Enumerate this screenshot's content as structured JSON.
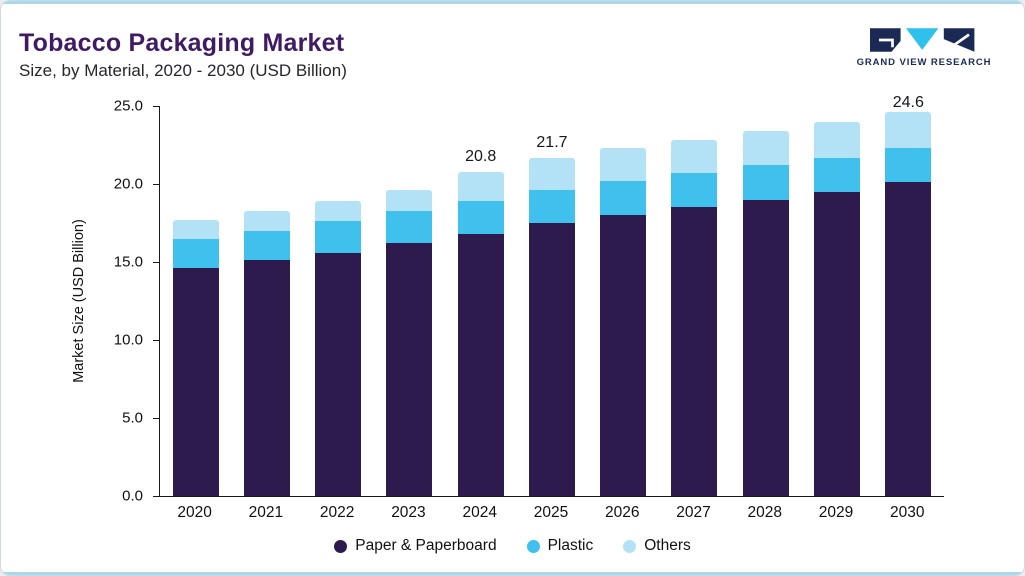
{
  "branding": {
    "logo_text": "GRAND VIEW RESEARCH"
  },
  "chart_data": {
    "type": "bar",
    "stacked": true,
    "title": "Tobacco Packaging Market",
    "subtitle": "Size, by Material, 2020 - 2030 (USD Billion)",
    "ylabel": "Market Size (USD Billion)",
    "xlabel": "",
    "ylim": [
      0,
      25
    ],
    "yticks": [
      0.0,
      5.0,
      10.0,
      15.0,
      20.0,
      25.0
    ],
    "grid": false,
    "legend_position": "bottom",
    "categories": [
      "2020",
      "2021",
      "2022",
      "2023",
      "2024",
      "2025",
      "2026",
      "2027",
      "2028",
      "2029",
      "2030"
    ],
    "series": [
      {
        "name": "Paper & Paperboard",
        "color": "#2d1b4e",
        "values": [
          14.6,
          15.1,
          15.6,
          16.2,
          16.8,
          17.5,
          18.0,
          18.5,
          19.0,
          19.5,
          20.1
        ]
      },
      {
        "name": "Plastic",
        "color": "#3fc0ed",
        "values": [
          1.9,
          1.9,
          2.0,
          2.1,
          2.1,
          2.1,
          2.2,
          2.2,
          2.2,
          2.2,
          2.2
        ]
      },
      {
        "name": "Others",
        "color": "#b3e2f7",
        "values": [
          1.2,
          1.3,
          1.3,
          1.3,
          1.9,
          2.1,
          2.1,
          2.1,
          2.2,
          2.3,
          2.3
        ]
      }
    ],
    "totals": [
      17.7,
      18.3,
      18.9,
      19.6,
      20.8,
      21.7,
      22.3,
      22.8,
      23.4,
      24.0,
      24.6
    ],
    "value_labels": [
      "",
      "",
      "",
      "",
      "20.8",
      "21.7",
      "",
      "",
      "",
      "",
      "24.6"
    ],
    "colors": {
      "accent_line": "#a4d9ef",
      "title": "#401a63",
      "logo_navy": "#1b2a55",
      "logo_cyan": "#2fc1ec"
    }
  }
}
